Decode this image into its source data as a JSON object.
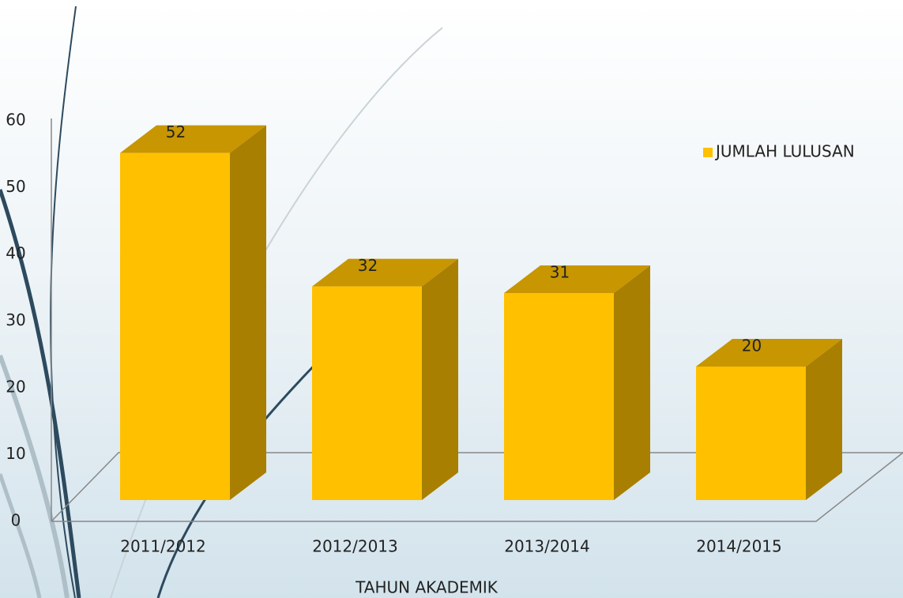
{
  "chart_data": {
    "type": "bar3d",
    "x_label": "TAHUN AKADEMIK",
    "categories": [
      "2011/2012",
      "2012/2013",
      "2013/2014",
      "2014/2015"
    ],
    "series": [
      {
        "name": "JUMLAH LULUSAN",
        "color": "#ffc000",
        "values": [
          52,
          32,
          31,
          20
        ]
      }
    ],
    "ylim": [
      0,
      60
    ],
    "yticks": [
      0,
      10,
      20,
      30,
      40,
      50,
      60
    ],
    "legend": "right"
  }
}
